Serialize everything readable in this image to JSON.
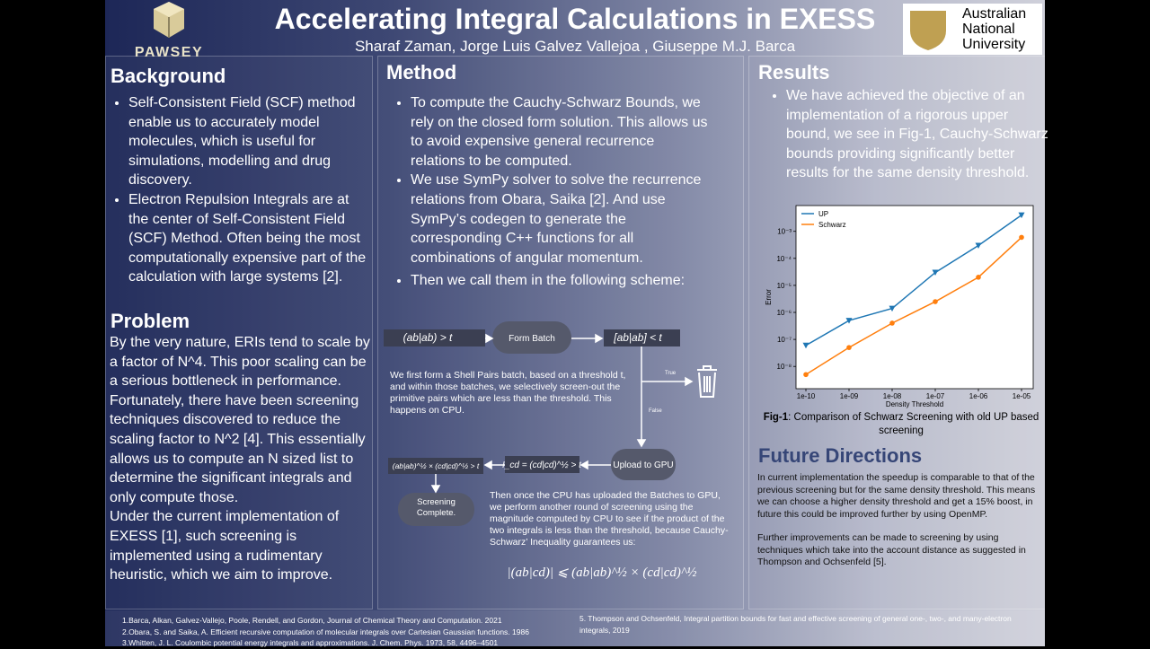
{
  "header": {
    "title": "Accelerating Integral Calculations in EXESS",
    "authors": "Sharaf Zaman, Jorge Luis Galvez Vallejoa , Giuseppe M.J. Barca",
    "logo_left": "PAWSEY",
    "logo_right": [
      "Australian",
      "National",
      "University"
    ]
  },
  "background": {
    "heading": "Background",
    "bullets": [
      "Self-Consistent Field (SCF) method enable us to accurately model molecules, which is useful for simulations, modelling and drug discovery.",
      "Electron Repulsion Integrals are at the center of Self-Consistent Field (SCF) Method. Often being the most computationally expensive part of the calculation with large systems [2]."
    ]
  },
  "problem": {
    "heading": "Problem",
    "paragraphs": [
      "By the very nature, ERIs tend to scale by a factor of N^4. This poor scaling can be a serious bottleneck in performance. Fortunately, there have been screening techniques discovered to reduce the scaling factor to N^2 [4]. This essentially allows us to compute an N sized list to determine the significant integrals and only compute those.",
      "Under the current implementation of EXESS [1], such screening is implemented using a rudimentary heuristic, which we aim to improve."
    ]
  },
  "method": {
    "heading": "Method",
    "bullets": [
      "To compute the Cauchy-Schwarz Bounds, we rely on the closed form solution. This allows us to avoid expensive general recurrence relations to be computed.",
      "We use SymPy solver to solve the recurrence relations from Obara, Saika [2]. And use SymPy’s codegen to generate the corresponding C++ functions for all combinations of angular momentum.",
      "Then we call them in the following scheme:"
    ]
  },
  "diagram": {
    "nodes": [
      "(ab|ab) > t",
      "Form Batch",
      "[ab|ab] < t",
      "Upload to GPU",
      "I_cd = (cd|cd)^½ > t",
      "(ab|ab)^½ × (cd|cd)^½ > t",
      "Screening Complete."
    ],
    "edge_labels": [
      "True",
      "False"
    ],
    "notes": [
      "We first form a Shell Pairs batch, based on a threshold t, and within those batches, we selectively screen-out the primitive pairs which are less than the threshold. This happens on CPU.",
      "Then once the CPU has uploaded the Batches to GPU, we perform another round of screening using the magnitude computed by CPU to see if the product of the two integrals is less than the threshold, because Cauchy-Schwarz’ Inequality guarantees us:"
    ],
    "formula": "|(ab|cd)| ⩽ (ab|ab)^½ × (cd|cd)^½"
  },
  "results": {
    "heading": "Results",
    "bullets": [
      "We have achieved the objective of an implementation of a rigorous upper bound, we see in Fig-1, Cauchy-Schwarz bounds providing significantly better results for the same density threshold."
    ],
    "caption_label": "Fig-1",
    "caption_text": ": Comparison of Schwarz Screening with old UP based screening"
  },
  "chart_data": {
    "type": "line",
    "categories": [
      "1e-10",
      "1e-09",
      "1e-08",
      "1e-07",
      "1e-06",
      "1e-05"
    ],
    "series": [
      {
        "name": "UP",
        "color": "#1f77b4",
        "marker": "triangle",
        "values": [
          6e-08,
          5e-07,
          1.4e-06,
          3e-05,
          0.0003,
          0.004
        ]
      },
      {
        "name": "Schwarz",
        "color": "#ff7f0e",
        "marker": "circle",
        "values": [
          5e-09,
          5e-08,
          4e-07,
          2.5e-06,
          2e-05,
          0.0006
        ]
      }
    ],
    "xlabel": "Density Threshold",
    "ylabel": "Error",
    "log_y": true,
    "ylim": [
      1.5e-09,
      0.009
    ],
    "yticks": [
      {
        "value": 1e-08,
        "label": "10⁻⁸"
      },
      {
        "value": 1e-07,
        "label": "10⁻⁷"
      },
      {
        "value": 1e-06,
        "label": "10⁻⁶"
      },
      {
        "value": 1e-05,
        "label": "10⁻⁵"
      },
      {
        "value": 0.0001,
        "label": "10⁻⁴"
      },
      {
        "value": 0.001,
        "label": "10⁻³"
      }
    ],
    "legend": "upper left"
  },
  "future": {
    "heading": "Future Directions",
    "paragraphs": [
      "In current implementation the speedup is comparable to that of the previous screening but for the same density threshold. This means we can choose a higher density threshold and get a 15% boost, in future this could be improved further  by using OpenMP.",
      "Further improvements can be made to screening by using techniques which take into the account distance as suggested in Thompson and Ochsenfeld [5]."
    ]
  },
  "references": {
    "left": [
      "1.Barca, Alkan, Galvez-Vallejo, Poole, Rendell, and Gordon, Journal of Chemical Theory and Computation. 2021",
      "2.Obara, S. and Saika, A. Efficient recursive computation of molecular integrals over Cartesian Gaussian functions. 1986",
      "3.Whitten, J. L. Coulombic potential energy integrals and approximations. J. Chem. Phys. 1973, 58, 4496–4501"
    ],
    "right": [
      "5. Thompson and Ochsenfeld, Integral partition bounds for fast and effective screening of general one-, two-, and many-electron integrals, 2019"
    ]
  }
}
